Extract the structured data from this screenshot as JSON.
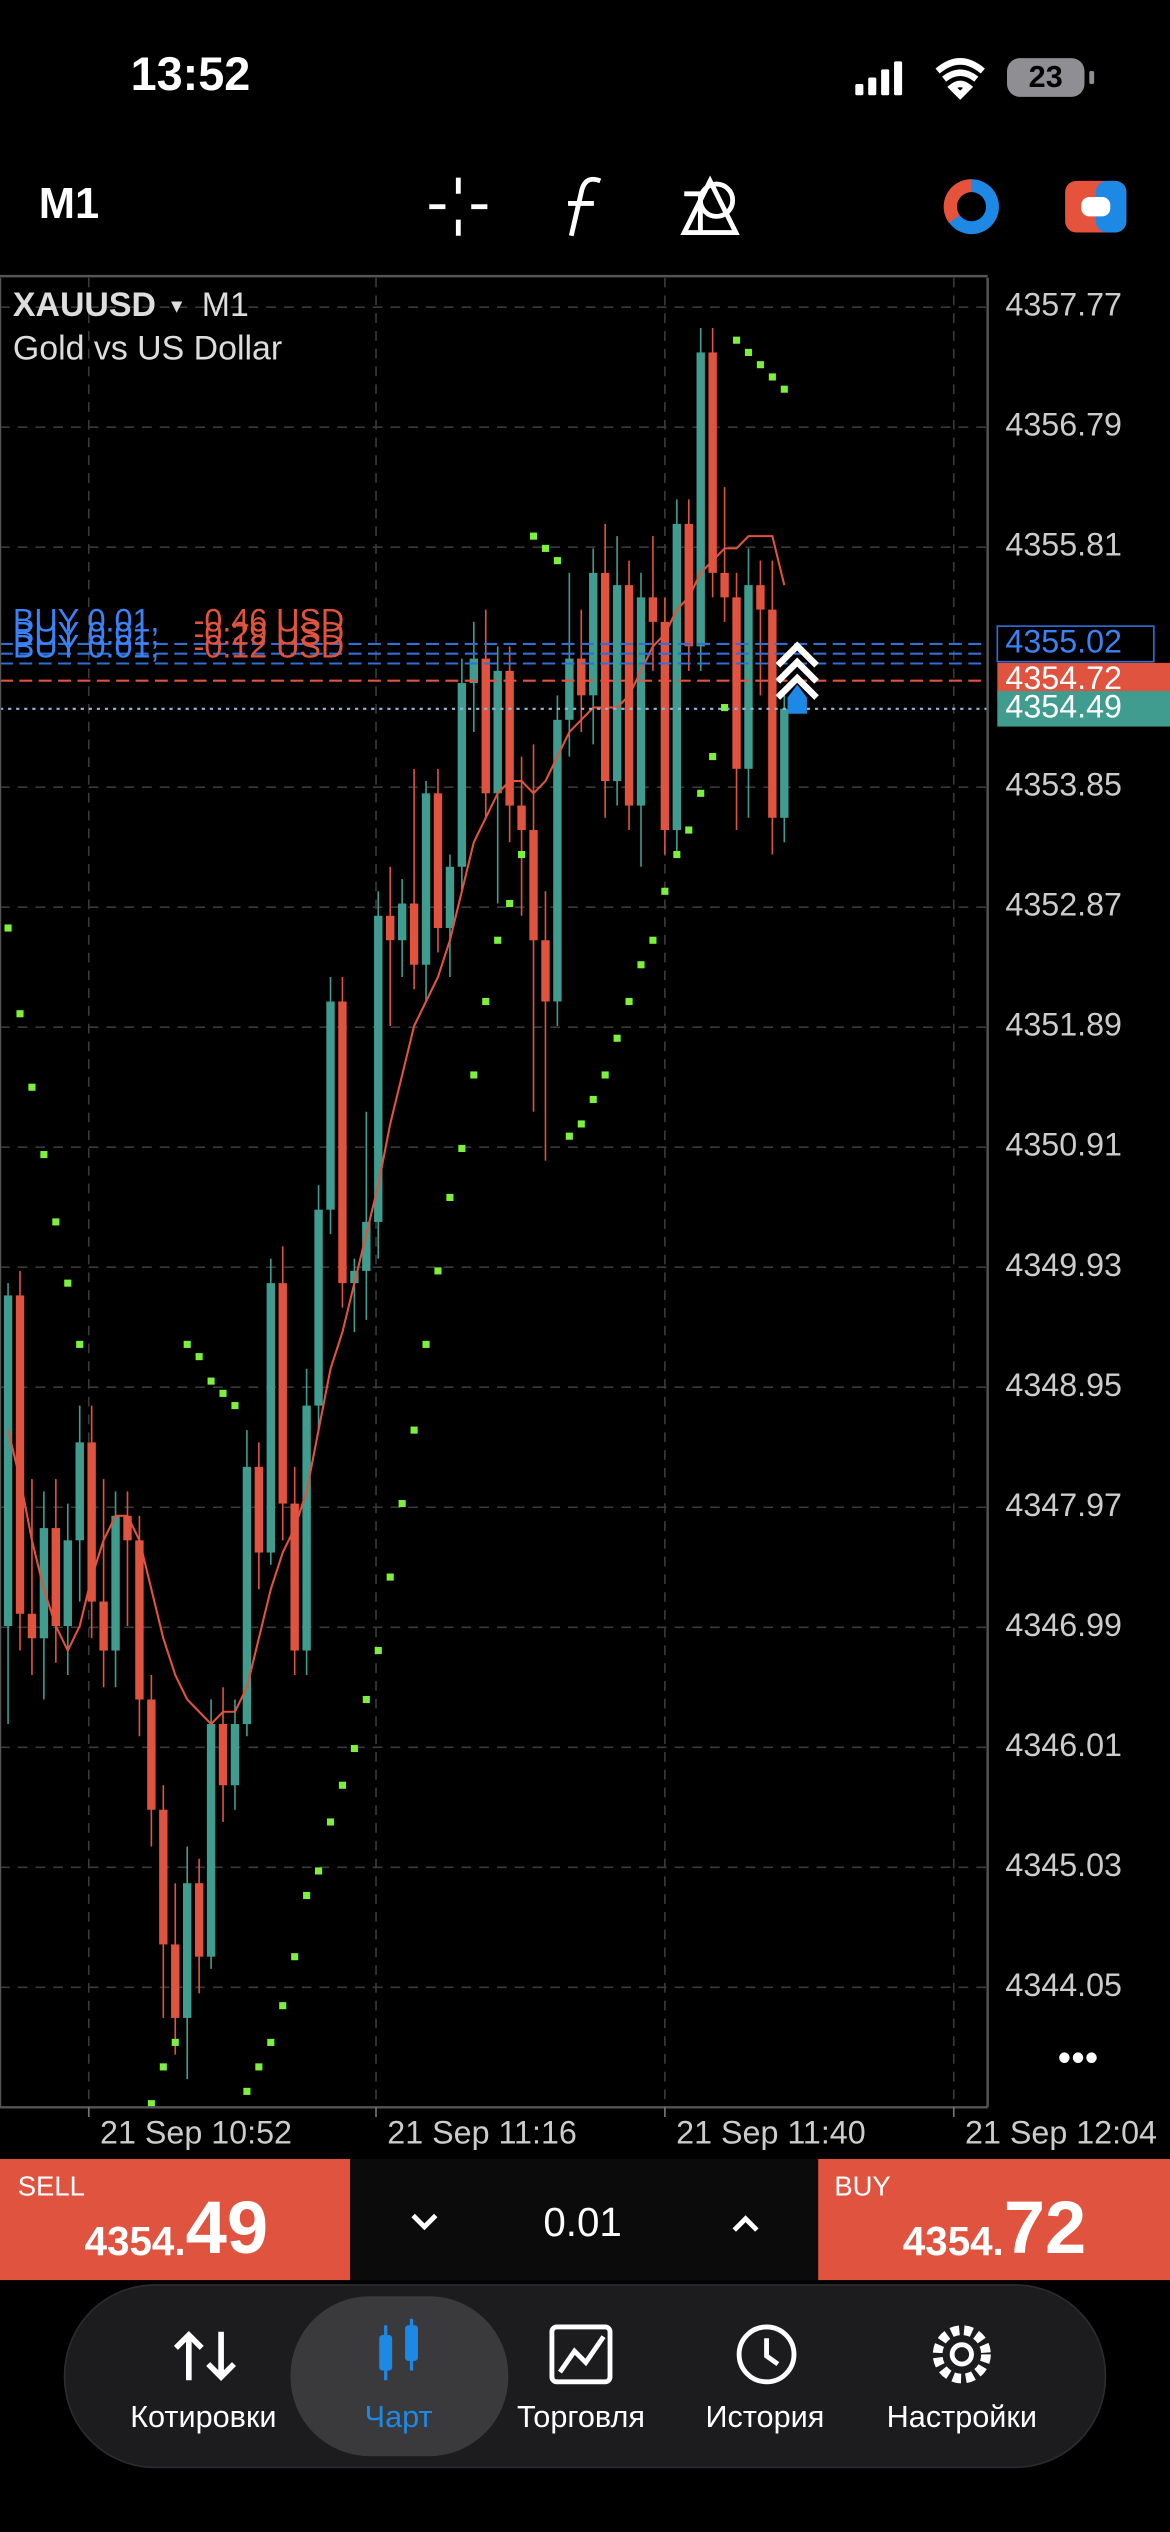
{
  "status_bar": {
    "time": "13:52",
    "battery": "23"
  },
  "toolbar": {
    "timeframe": "M1"
  },
  "chart": {
    "type": "candlestick",
    "symbol": "XAUUSD",
    "symbol_caret": "▾",
    "timeframe": "M1",
    "description": "Gold vs US Dollar",
    "ylim": [
      4343.07,
      4358.01
    ],
    "yticks": [
      4357.77,
      4356.79,
      4355.81,
      4353.85,
      4352.87,
      4351.89,
      4350.91,
      4349.93,
      4348.95,
      4347.97,
      4346.99,
      4346.01,
      4345.03,
      4344.05
    ],
    "xtick_labels": [
      "21 Sep 10:52",
      "21 Sep 11:16",
      "21 Sep 11:40",
      "21 Sep 12:04"
    ],
    "grid": true,
    "up_color": "#3f9c8e",
    "down_color": "#e0533f",
    "candles": [
      [
        4347.0,
        4349.8,
        4346.2,
        4349.7
      ],
      [
        4349.7,
        4349.9,
        4346.8,
        4347.1
      ],
      [
        4347.1,
        4348.2,
        4346.6,
        4346.9
      ],
      [
        4346.9,
        4348.1,
        4346.4,
        4347.8
      ],
      [
        4347.8,
        4348.2,
        4346.7,
        4347.0
      ],
      [
        4347.0,
        4348.0,
        4346.6,
        4347.7
      ],
      [
        4347.7,
        4348.8,
        4347.2,
        4348.5
      ],
      [
        4348.5,
        4348.8,
        4346.9,
        4347.2
      ],
      [
        4347.2,
        4348.2,
        4346.5,
        4346.8
      ],
      [
        4346.8,
        4348.1,
        4346.5,
        4347.9
      ],
      [
        4347.9,
        4348.1,
        4347.0,
        4347.7
      ],
      [
        4347.7,
        4347.9,
        4346.1,
        4346.4
      ],
      [
        4346.4,
        4346.6,
        4345.2,
        4345.5
      ],
      [
        4345.5,
        4345.7,
        4343.8,
        4344.4
      ],
      [
        4344.4,
        4344.9,
        4343.5,
        4343.8
      ],
      [
        4343.8,
        4345.2,
        4343.3,
        4344.9
      ],
      [
        4344.9,
        4345.1,
        4344.0,
        4344.3
      ],
      [
        4344.3,
        4346.4,
        4344.2,
        4346.2
      ],
      [
        4346.2,
        4346.5,
        4345.4,
        4345.7
      ],
      [
        4345.7,
        4346.4,
        4345.5,
        4346.2
      ],
      [
        4346.2,
        4348.6,
        4346.1,
        4348.3
      ],
      [
        4348.3,
        4348.5,
        4347.3,
        4347.6
      ],
      [
        4347.6,
        4350.0,
        4347.5,
        4349.8
      ],
      [
        4349.8,
        4350.1,
        4347.7,
        4348.0
      ],
      [
        4348.0,
        4348.3,
        4346.6,
        4346.8
      ],
      [
        4346.8,
        4349.1,
        4346.6,
        4348.8
      ],
      [
        4348.8,
        4350.6,
        4348.6,
        4350.4
      ],
      [
        4350.4,
        4352.3,
        4350.2,
        4352.1
      ],
      [
        4352.1,
        4352.3,
        4349.6,
        4349.8
      ],
      [
        4349.8,
        4350.0,
        4349.4,
        4349.9
      ],
      [
        4349.9,
        4351.2,
        4349.5,
        4350.3
      ],
      [
        4350.3,
        4353.0,
        4350.0,
        4352.8
      ],
      [
        4352.8,
        4353.2,
        4351.9,
        4352.6
      ],
      [
        4352.6,
        4353.1,
        4352.3,
        4352.9
      ],
      [
        4352.9,
        4354.0,
        4352.2,
        4352.4
      ],
      [
        4352.4,
        4353.9,
        4352.1,
        4353.8
      ],
      [
        4353.8,
        4354.0,
        4352.5,
        4352.7
      ],
      [
        4352.7,
        4353.3,
        4352.3,
        4353.2
      ],
      [
        4353.2,
        4354.9,
        4353.0,
        4354.7
      ],
      [
        4354.7,
        4355.2,
        4354.3,
        4354.9
      ],
      [
        4354.9,
        4355.3,
        4353.6,
        4353.8
      ],
      [
        4353.8,
        4355.0,
        4352.9,
        4354.8
      ],
      [
        4354.8,
        4355.0,
        4353.4,
        4353.7
      ],
      [
        4353.7,
        4354.1,
        4352.8,
        4353.5
      ],
      [
        4353.5,
        4354.2,
        4351.2,
        4352.6
      ],
      [
        4352.6,
        4353.0,
        4350.8,
        4352.1
      ],
      [
        4352.1,
        4354.6,
        4351.9,
        4354.4
      ],
      [
        4354.4,
        4355.6,
        4354.1,
        4354.9
      ],
      [
        4354.9,
        4355.3,
        4354.3,
        4354.6
      ],
      [
        4354.6,
        4355.8,
        4354.2,
        4355.6
      ],
      [
        4355.6,
        4356.0,
        4353.6,
        4353.9
      ],
      [
        4353.9,
        4355.9,
        4353.7,
        4355.5
      ],
      [
        4355.5,
        4355.7,
        4353.5,
        4353.7
      ],
      [
        4353.7,
        4355.6,
        4353.2,
        4355.4
      ],
      [
        4355.4,
        4355.9,
        4354.8,
        4355.2
      ],
      [
        4355.2,
        4355.4,
        4353.3,
        4353.5
      ],
      [
        4353.5,
        4356.2,
        4353.3,
        4356.0
      ],
      [
        4356.0,
        4356.2,
        4354.8,
        4355.0
      ],
      [
        4355.0,
        4357.6,
        4354.8,
        4357.4
      ],
      [
        4357.4,
        4357.6,
        4355.4,
        4355.6
      ],
      [
        4355.6,
        4356.3,
        4355.2,
        4355.4
      ],
      [
        4355.4,
        4355.6,
        4353.5,
        4354.0
      ],
      [
        4354.0,
        4355.8,
        4353.6,
        4355.5
      ],
      [
        4355.5,
        4355.7,
        4354.6,
        4355.3
      ],
      [
        4355.3,
        4355.7,
        4353.3,
        4353.6
      ],
      [
        4353.6,
        4354.6,
        4353.4,
        4354.49
      ]
    ],
    "ma": {
      "color": "#e0533f",
      "values": [
        4348.6,
        4348.2,
        4347.7,
        4347.3,
        4347.0,
        4346.8,
        4347.0,
        4347.4,
        4347.7,
        4347.9,
        4347.9,
        4347.7,
        4347.3,
        4346.9,
        4346.6,
        4346.4,
        4346.3,
        4346.2,
        4346.3,
        4346.3,
        4346.5,
        4346.9,
        4347.3,
        4347.6,
        4347.8,
        4348.1,
        4348.6,
        4349.1,
        4349.4,
        4349.8,
        4350.2,
        4350.6,
        4351.1,
        4351.5,
        4351.9,
        4352.1,
        4352.3,
        4352.6,
        4353.0,
        4353.4,
        4353.6,
        4353.8,
        4353.9,
        4353.9,
        4353.8,
        4353.9,
        4354.1,
        4354.3,
        4354.4,
        4354.5,
        4354.5,
        4354.5,
        4354.6,
        4354.8,
        4355.0,
        4355.1,
        4355.3,
        4355.4,
        4355.6,
        4355.7,
        4355.8,
        4355.8,
        4355.9,
        4355.9,
        4355.9,
        4355.5
      ]
    },
    "sar": {
      "color": "#7cf03c",
      "values": [
        4352.7,
        4352.0,
        4351.4,
        4350.85,
        4350.3,
        4349.8,
        4349.3,
        null,
        null,
        null,
        null,
        null,
        4343.1,
        4343.4,
        4343.6,
        4349.3,
        4349.2,
        4349.0,
        4348.9,
        4348.8,
        4343.2,
        4343.4,
        4343.6,
        4343.9,
        4344.3,
        4344.8,
        4345.0,
        4345.4,
        4345.7,
        4346.0,
        4346.4,
        4346.8,
        4347.4,
        4348.0,
        4348.6,
        4349.3,
        4349.9,
        4350.5,
        4350.9,
        4351.5,
        4352.1,
        4352.6,
        4352.9,
        4353.3,
        4355.9,
        4355.8,
        4355.7,
        4351.0,
        4351.1,
        4351.3,
        4351.5,
        4351.8,
        4352.1,
        4352.4,
        4352.6,
        4353.0,
        4353.3,
        4353.5,
        4353.8,
        4354.1,
        4354.5,
        4357.5,
        4357.4,
        4357.3,
        4357.2,
        4357.1
      ]
    },
    "orders": [
      {
        "side": "BUY 0.01,",
        "profit": "-0.46 USD",
        "price": 4355.02
      },
      {
        "side": "BUY 0.01,",
        "profit": "-0.29 USD",
        "price": 4354.94
      },
      {
        "side": "BUY 0.01,",
        "profit": "-0.12 USD",
        "price": 4354.86
      }
    ],
    "order_price_label": 4355.02,
    "ask": 4354.72,
    "bid": 4354.49
  },
  "trade_panel": {
    "sell": {
      "label": "SELL",
      "price_main": "4354.",
      "price_pips": "49"
    },
    "volume": "0.01",
    "buy": {
      "label": "BUY",
      "price_main": "4354.",
      "price_pips": "72"
    }
  },
  "nav": [
    "Котировки",
    "Чарт",
    "Торговля",
    "История",
    "Настройки"
  ]
}
